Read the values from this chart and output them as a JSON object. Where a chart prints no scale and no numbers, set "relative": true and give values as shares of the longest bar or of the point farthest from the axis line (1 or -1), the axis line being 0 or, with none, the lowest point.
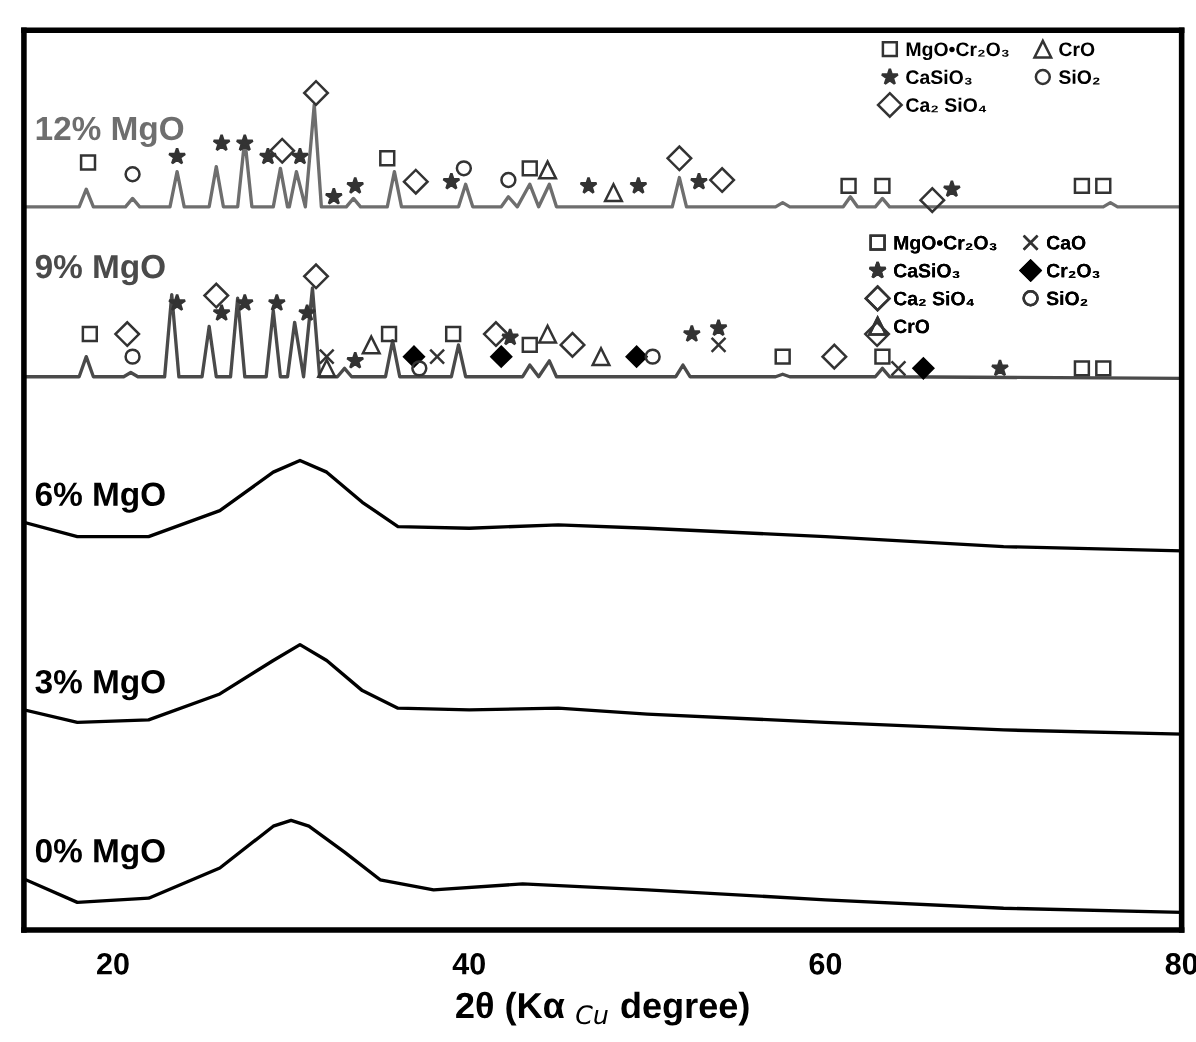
{
  "chart_data": {
    "type": "line",
    "relative": true,
    "xlabel": "2θ (Kα $_{Cu}$ degree)",
    "xlim": [
      15,
      80
    ],
    "xticks": [
      20,
      40,
      60,
      80
    ],
    "legend": "top right",
    "grid": false,
    "series": [
      {
        "name": "12% MgO",
        "color": "#6e6e6e",
        "x": [
          15,
          18.1,
          18.5,
          18.9,
          20.7,
          21.1,
          21.5,
          23.2,
          23.6,
          24.0,
          25.4,
          25.8,
          26.2,
          27.0,
          27.4,
          27.8,
          29.0,
          29.4,
          29.8,
          29.9,
          30.3,
          30.8,
          31.3,
          31.7,
          33.1,
          33.5,
          33.9,
          35.4,
          35.8,
          36.2,
          39.4,
          39.8,
          40.2,
          41.8,
          42.2,
          42.7,
          43.4,
          43.9,
          44.5,
          44.9,
          51.4,
          51.8,
          52.2,
          57.2,
          57.6,
          58.0,
          61.0,
          61.4,
          61.8,
          62.8,
          63.2,
          63.6,
          75.6,
          76.0,
          76.4,
          80
        ],
        "values": [
          0.864,
          0.864,
          0.885,
          0.864,
          0.864,
          0.874,
          0.864,
          0.864,
          0.906,
          0.864,
          0.864,
          0.912,
          0.864,
          0.864,
          0.945,
          0.864,
          0.864,
          0.91,
          0.864,
          0.864,
          0.906,
          0.864,
          0.986,
          0.864,
          0.864,
          0.874,
          0.864,
          0.864,
          0.906,
          0.864,
          0.864,
          0.891,
          0.864,
          0.864,
          0.876,
          0.864,
          0.891,
          0.864,
          0.891,
          0.864,
          0.864,
          0.899,
          0.864,
          0.864,
          0.869,
          0.864,
          0.864,
          0.876,
          0.864,
          0.864,
          0.874,
          0.864,
          0.864,
          0.869,
          0.864,
          0.864
        ]
      },
      {
        "name": "9% MgO",
        "color": "#4a4a4a",
        "x": [
          15,
          18.1,
          18.5,
          18.9,
          20.6,
          21.0,
          21.4,
          22.9,
          23.3,
          23.7,
          25.0,
          25.4,
          25.8,
          26.6,
          27.0,
          27.4,
          28.6,
          29.0,
          29.4,
          29.8,
          30.2,
          30.7,
          31.2,
          31.6,
          32.6,
          33.0,
          33.4,
          35.3,
          35.7,
          36.1,
          39.0,
          39.4,
          39.8,
          43.0,
          43.4,
          43.9,
          44.5,
          44.9,
          51.6,
          52.0,
          52.4,
          57.2,
          57.6,
          58.0,
          62.8,
          63.2,
          63.6,
          80
        ],
        "values": [
          0.661,
          0.661,
          0.685,
          0.661,
          0.661,
          0.666,
          0.661,
          0.661,
          0.759,
          0.661,
          0.661,
          0.721,
          0.661,
          0.661,
          0.755,
          0.661,
          0.661,
          0.74,
          0.661,
          0.661,
          0.726,
          0.661,
          0.767,
          0.661,
          0.661,
          0.671,
          0.661,
          0.661,
          0.704,
          0.661,
          0.661,
          0.699,
          0.661,
          0.661,
          0.675,
          0.661,
          0.68,
          0.661,
          0.661,
          0.675,
          0.661,
          0.661,
          0.664,
          0.661,
          0.661,
          0.671,
          0.661,
          0.659
        ]
      },
      {
        "name": "6% MgO",
        "color": "#000000",
        "x": [
          15,
          18,
          22,
          26,
          29,
          30.5,
          32,
          34,
          36,
          40,
          45,
          50,
          60,
          70,
          80
        ],
        "values": [
          0.487,
          0.47,
          0.47,
          0.501,
          0.547,
          0.561,
          0.547,
          0.511,
          0.482,
          0.48,
          0.484,
          0.48,
          0.47,
          0.458,
          0.453
        ]
      },
      {
        "name": "3% MgO",
        "color": "#000000",
        "x": [
          15,
          18,
          22,
          26,
          29,
          30.5,
          32,
          34,
          36,
          40,
          45,
          50,
          60,
          70,
          80
        ],
        "values": [
          0.263,
          0.248,
          0.251,
          0.282,
          0.322,
          0.341,
          0.322,
          0.286,
          0.265,
          0.263,
          0.265,
          0.258,
          0.248,
          0.239,
          0.234
        ]
      },
      {
        "name": "0% MgO",
        "color": "#000000",
        "x": [
          15,
          18,
          22,
          26,
          29,
          30,
          31,
          33,
          35,
          38,
          43,
          50,
          60,
          70,
          80
        ],
        "values": [
          0.061,
          0.033,
          0.038,
          0.074,
          0.124,
          0.131,
          0.124,
          0.093,
          0.06,
          0.048,
          0.055,
          0.048,
          0.036,
          0.026,
          0.021
        ]
      },
      {
        "type": "scatter",
        "name": "MgO•Cr₂O₃",
        "marker": "square",
        "color": "#333333",
        "x": [
          18.6,
          35.4,
          43.4,
          61.3,
          63.2,
          74.4,
          75.6
        ],
        "values": [
          0.917,
          0.922,
          0.91,
          0.889,
          0.889,
          0.889,
          0.889
        ]
      },
      {
        "type": "scatter",
        "name": "CaSiO₃",
        "marker": "star",
        "color": "#333333",
        "x": [
          23.6,
          26.1,
          27.4,
          28.7,
          30.5,
          32.4,
          33.6,
          39.0,
          46.7,
          49.5,
          52.9,
          67.1
        ],
        "values": [
          0.924,
          0.94,
          0.94,
          0.924,
          0.924,
          0.876,
          0.889,
          0.894,
          0.889,
          0.889,
          0.894,
          0.885
        ]
      },
      {
        "type": "scatter",
        "name": "Ca₂ SiO₄",
        "marker": "diamond",
        "color": "#333333",
        "x": [
          29.5,
          31.4,
          37.0,
          51.8,
          54.2,
          66.0
        ],
        "values": [
          0.931,
          1.0,
          0.894,
          0.922,
          0.896,
          0.872
        ]
      },
      {
        "type": "scatter",
        "name": "CrO",
        "marker": "triangle",
        "color": "#333333",
        "x": [
          44.4,
          48.1
        ],
        "values": [
          0.908,
          0.881
        ]
      },
      {
        "type": "scatter",
        "name": "SiO₂",
        "marker": "circle",
        "color": "#333333",
        "x": [
          21.1,
          39.7,
          42.2
        ],
        "values": [
          0.903,
          0.91,
          0.896
        ]
      },
      {
        "type": "scatter",
        "name": "MgO•Cr₂O₃",
        "marker": "square",
        "color": "#333333",
        "x": [
          18.7,
          35.5,
          39.1,
          43.4,
          57.6,
          63.2,
          74.4,
          75.6
        ],
        "values": [
          0.712,
          0.712,
          0.712,
          0.699,
          0.685,
          0.685,
          0.671,
          0.671
        ]
      },
      {
        "type": "scatter",
        "name": "CaSiO₃",
        "marker": "star",
        "color": "#333333",
        "x": [
          23.6,
          26.1,
          27.4,
          29.2,
          30.9,
          33.6,
          42.3,
          52.5,
          54.0,
          69.8
        ],
        "values": [
          0.749,
          0.737,
          0.749,
          0.749,
          0.737,
          0.68,
          0.708,
          0.712,
          0.719,
          0.671
        ]
      },
      {
        "type": "scatter",
        "name": "Ca₂ SiO₄",
        "marker": "diamond",
        "color": "#333333",
        "x": [
          20.8,
          25.8,
          31.4,
          41.5,
          45.8,
          60.5,
          62.9
        ],
        "values": [
          0.712,
          0.758,
          0.781,
          0.712,
          0.699,
          0.685,
          0.712
        ]
      },
      {
        "type": "scatter",
        "name": "CrO",
        "marker": "triangle",
        "color": "#333333",
        "x": [
          32.0,
          34.5,
          44.4,
          47.4
        ],
        "values": [
          0.671,
          0.699,
          0.712,
          0.685
        ]
      },
      {
        "type": "scatter",
        "name": "CaO",
        "marker": "cross",
        "color": "#333333",
        "x": [
          32.0,
          38.2,
          54.0,
          64.1
        ],
        "values": [
          0.685,
          0.685,
          0.699,
          0.671
        ]
      },
      {
        "type": "scatter",
        "name": "Cr₂O₃",
        "marker": "diamond",
        "color": "#000000",
        "x": [
          36.9,
          41.8,
          49.4,
          65.5
        ],
        "values": [
          0.685,
          0.685,
          0.685,
          0.671
        ]
      },
      {
        "type": "scatter",
        "name": "SiO₂",
        "marker": "circle",
        "color": "#333333",
        "x": [
          21.1,
          37.2,
          50.3
        ],
        "values": [
          0.685,
          0.671,
          0.685
        ]
      }
    ]
  }
}
